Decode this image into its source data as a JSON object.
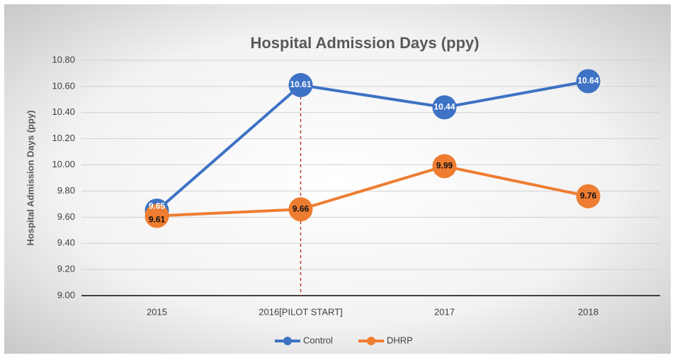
{
  "chart_data": {
    "type": "line",
    "title": "Hospital Admission Days (ppy)",
    "y_label": "Hospital Admission Days (ppy)",
    "categories": [
      "2015",
      "2016[PILOT START]",
      "2017",
      "2018"
    ],
    "series": [
      {
        "name": "Control",
        "color": "#3d72c4",
        "values": [
          9.65,
          10.61,
          10.44,
          10.64
        ]
      },
      {
        "name": "DHRP",
        "color": "#ee7d31",
        "values": [
          9.61,
          9.66,
          9.99,
          9.76
        ]
      }
    ],
    "ylim": [
      9.0,
      10.8
    ],
    "yticks": [
      {
        "value": 9.0,
        "label": "9.00"
      },
      {
        "value": 9.2,
        "label": "9.20"
      },
      {
        "value": 9.4,
        "label": "9.40"
      },
      {
        "value": 9.6,
        "label": "9.60"
      },
      {
        "value": 9.8,
        "label": "9.80"
      },
      {
        "value": 10.0,
        "label": "10.00"
      },
      {
        "value": 10.2,
        "label": "10.20"
      },
      {
        "value": 10.4,
        "label": "10.40"
      },
      {
        "value": 10.6,
        "label": "10.60"
      },
      {
        "value": 10.8,
        "label": "10.80"
      }
    ],
    "grid": true,
    "legend": "bottom"
  }
}
